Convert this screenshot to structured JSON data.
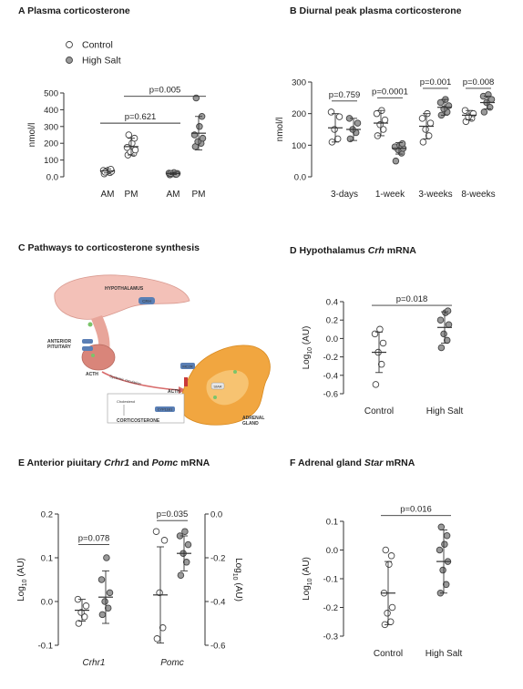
{
  "colors": {
    "control_fill": "#ffffff",
    "high_salt_fill": "#9a9a9a",
    "stroke": "#444444"
  },
  "chart_data": [
    {
      "id": "A",
      "type": "scatter",
      "title": "A  Plasma corticosterone",
      "ylabel": "nmol/l",
      "ylim": [
        0,
        500
      ],
      "yticks": [
        0,
        100,
        200,
        300,
        400,
        500
      ],
      "legend": [
        {
          "name": "Control",
          "fill": "control"
        },
        {
          "name": "High Salt",
          "fill": "high_salt"
        }
      ],
      "categories": [
        "AM",
        "PM",
        "AM",
        "PM"
      ],
      "groups": [
        {
          "cat": 0,
          "fill": "control",
          "mean": 35,
          "sd": 12,
          "points": [
            18,
            25,
            30,
            33,
            38,
            40,
            45,
            28
          ]
        },
        {
          "cat": 1,
          "fill": "control",
          "mean": 180,
          "sd": 50,
          "points": [
            130,
            140,
            150,
            160,
            175,
            200,
            230,
            250
          ]
        },
        {
          "cat": 2,
          "fill": "high_salt",
          "mean": 20,
          "sd": 6,
          "points": [
            12,
            15,
            18,
            20,
            22,
            25,
            15,
            20
          ]
        },
        {
          "cat": 3,
          "fill": "high_salt",
          "mean": 260,
          "sd": 100,
          "points": [
            180,
            200,
            210,
            230,
            250,
            300,
            360,
            470
          ]
        }
      ],
      "comparisons": [
        {
          "label": "p=0.621",
          "from": 0,
          "to": 2,
          "y": 320
        },
        {
          "label": "p=0.005",
          "from": 1,
          "to": 3,
          "y": 480
        }
      ]
    },
    {
      "id": "B",
      "type": "scatter",
      "title": "B  Diurnal peak plasma corticosterone",
      "ylabel": "nmol/l",
      "ylim": [
        0,
        300
      ],
      "yticks": [
        0,
        100,
        200,
        300
      ],
      "categories": [
        "3-days",
        "1-week",
        "3-weeks",
        "8-weeks"
      ],
      "groups": [
        {
          "cat": 0,
          "side": -1,
          "fill": "control",
          "mean": 155,
          "sd": 45,
          "points": [
            110,
            120,
            150,
            190,
            205
          ]
        },
        {
          "cat": 0,
          "side": 1,
          "fill": "high_salt",
          "mean": 150,
          "sd": 35,
          "points": [
            120,
            140,
            150,
            170,
            185
          ]
        },
        {
          "cat": 1,
          "side": -1,
          "fill": "control",
          "mean": 170,
          "sd": 40,
          "points": [
            130,
            150,
            165,
            180,
            200,
            210
          ]
        },
        {
          "cat": 1,
          "side": 1,
          "fill": "high_salt",
          "mean": 90,
          "sd": 18,
          "points": [
            50,
            75,
            85,
            90,
            95,
            100,
            105
          ]
        },
        {
          "cat": 2,
          "side": -1,
          "fill": "control",
          "mean": 160,
          "sd": 40,
          "points": [
            110,
            130,
            150,
            170,
            185,
            200
          ]
        },
        {
          "cat": 2,
          "side": 1,
          "fill": "high_salt",
          "mean": 220,
          "sd": 25,
          "points": [
            195,
            205,
            215,
            225,
            235,
            245
          ]
        },
        {
          "cat": 3,
          "side": -1,
          "fill": "control",
          "mean": 195,
          "sd": 15,
          "points": [
            175,
            185,
            190,
            200,
            210
          ]
        },
        {
          "cat": 3,
          "side": 1,
          "fill": "high_salt",
          "mean": 235,
          "sd": 20,
          "points": [
            205,
            220,
            235,
            245,
            255,
            260
          ]
        }
      ],
      "comparisons": [
        {
          "label": "p=0.759",
          "cat": 0,
          "y": 240
        },
        {
          "label": "p=0.0001",
          "cat": 1,
          "y": 250
        },
        {
          "label": "p=0.001",
          "cat": 2,
          "y": 280
        },
        {
          "label": "p=0.008",
          "cat": 3,
          "y": 280
        }
      ]
    },
    {
      "id": "D",
      "type": "scatter",
      "title_parts": [
        {
          "t": "D  Hypothalamus ",
          "i": false
        },
        {
          "t": "Crh",
          "i": true
        },
        {
          "t": " mRNA",
          "i": false
        }
      ],
      "ylabel_base": "Log",
      "ylabel_sub": "10",
      "ylabel_rest": " (AU)",
      "ylim": [
        -0.6,
        0.4
      ],
      "yticks": [
        -0.6,
        -0.4,
        -0.2,
        0.0,
        0.2,
        0.4
      ],
      "categories": [
        "Control",
        "High Salt"
      ],
      "groups": [
        {
          "cat": 0,
          "fill": "control",
          "mean": -0.15,
          "sd": 0.22,
          "points": [
            -0.5,
            -0.28,
            -0.15,
            -0.05,
            0.05,
            0.1
          ]
        },
        {
          "cat": 1,
          "fill": "high_salt",
          "mean": 0.12,
          "sd": 0.17,
          "points": [
            -0.1,
            -0.02,
            0.05,
            0.15,
            0.2,
            0.28,
            0.3
          ]
        }
      ],
      "comparisons": [
        {
          "label": "p=0.018",
          "from": 0,
          "to": 1,
          "y": 0.36
        }
      ]
    },
    {
      "id": "E",
      "type": "scatter",
      "title_parts": [
        {
          "t": "E  Anterior piuitary ",
          "i": false
        },
        {
          "t": "Crhr1",
          "i": true
        },
        {
          "t": " and ",
          "i": false
        },
        {
          "t": "Pomc",
          "i": true
        },
        {
          "t": " mRNA",
          "i": false
        }
      ],
      "ylabel_base": "Log",
      "ylabel_sub": "10",
      "ylabel_rest": " (AU)",
      "ylim": [
        -0.1,
        0.2
      ],
      "yticks": [
        -0.1,
        0.0,
        0.1,
        0.2
      ],
      "ylim_right": [
        -0.6,
        0.0
      ],
      "yticks_right": [
        -0.6,
        -0.4,
        -0.2,
        0.0
      ],
      "categories": [
        "Crhr1",
        "Pomc"
      ],
      "groups": [
        {
          "cat": 0,
          "side": -1,
          "fill": "control",
          "mean": -0.02,
          "sd": 0.025,
          "points": [
            -0.05,
            -0.035,
            -0.025,
            -0.01,
            0.005
          ]
        },
        {
          "cat": 0,
          "side": 1,
          "fill": "high_salt",
          "mean": 0.01,
          "sd": 0.06,
          "points": [
            -0.03,
            -0.015,
            0.0,
            0.02,
            0.05,
            0.1
          ]
        },
        {
          "cat": 1,
          "side": -1,
          "fill": "control",
          "axis": "right",
          "mean": -0.37,
          "sd": 0.22,
          "points": [
            -0.57,
            -0.52,
            -0.36,
            -0.12,
            -0.08
          ]
        },
        {
          "cat": 1,
          "side": 1,
          "fill": "high_salt",
          "axis": "right",
          "mean": -0.18,
          "sd": 0.08,
          "points": [
            -0.28,
            -0.22,
            -0.18,
            -0.14,
            -0.1,
            -0.08
          ]
        }
      ],
      "comparisons": [
        {
          "label": "p=0.078",
          "cat": 0,
          "y": 0.13
        },
        {
          "label": "p=0.035",
          "cat": 1,
          "axis": "right",
          "y": -0.03
        }
      ]
    },
    {
      "id": "F",
      "type": "scatter",
      "title_parts": [
        {
          "t": "F  Adrenal gland ",
          "i": false
        },
        {
          "t": "Star",
          "i": true
        },
        {
          "t": " mRNA",
          "i": false
        }
      ],
      "ylabel_base": "Log",
      "ylabel_sub": "10",
      "ylabel_rest": " (AU)",
      "ylim": [
        -0.3,
        0.1
      ],
      "yticks": [
        -0.3,
        -0.2,
        -0.1,
        0.0,
        0.1
      ],
      "categories": [
        "Control",
        "High Salt"
      ],
      "groups": [
        {
          "cat": 0,
          "fill": "control",
          "mean": -0.15,
          "sd": 0.11,
          "points": [
            -0.26,
            -0.25,
            -0.22,
            -0.2,
            -0.15,
            -0.05,
            -0.02,
            0.0
          ]
        },
        {
          "cat": 1,
          "fill": "high_salt",
          "mean": -0.04,
          "sd": 0.11,
          "points": [
            -0.15,
            -0.12,
            -0.07,
            -0.04,
            0.0,
            0.02,
            0.05,
            0.08
          ]
        }
      ],
      "comparisons": [
        {
          "label": "p=0.016",
          "from": 0,
          "to": 1,
          "y": 0.12
        }
      ]
    }
  ],
  "diagram": {
    "title": "C  Pathways to corticosterone synthesis",
    "labels": {
      "hypothalamus": "HYPOTHALAMUS",
      "crh": "CRH",
      "anterior_pituitary": "ANTERIOR\nPITUITARY",
      "acth_left": "ACTH",
      "acth_right": "ACTH",
      "mc2r": "MC2R",
      "systemic": "Systemic circulation",
      "star": "StAR",
      "corticosterone": "CORTICOSTERONE",
      "adrenal": "ADRENAL\nGLAND",
      "cholesterol": "Cholesterol",
      "cyp11b1": "CYP11B1"
    }
  }
}
